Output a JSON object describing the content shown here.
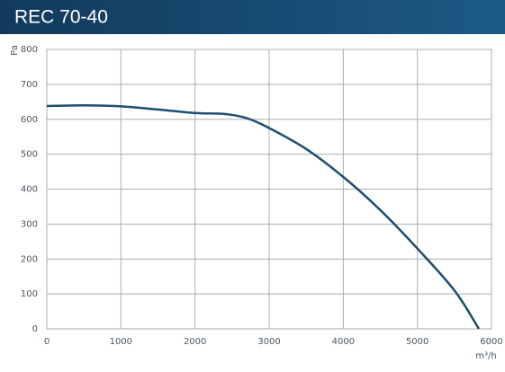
{
  "chart_data": {
    "type": "line",
    "title": "REC 70-40",
    "y_label": "Pa",
    "x_label": "m³/h",
    "x": [
      0,
      500,
      1000,
      1500,
      2000,
      2400,
      2700,
      3000,
      3500,
      4000,
      4500,
      5000,
      5500,
      5830
    ],
    "series": [
      {
        "name": "REC 70-40",
        "color": "#1d4f6e",
        "values": [
          638,
          640,
          637,
          628,
          618,
          615,
          603,
          575,
          515,
          435,
          340,
          230,
          110,
          0
        ]
      }
    ],
    "xlim": [
      0,
      6000
    ],
    "xticks": [
      0,
      1000,
      2000,
      3000,
      4000,
      5000,
      6000
    ],
    "ylim": [
      0,
      800
    ],
    "yticks": [
      0,
      100,
      200,
      300,
      400,
      500,
      600,
      700,
      800
    ],
    "grid": true
  }
}
